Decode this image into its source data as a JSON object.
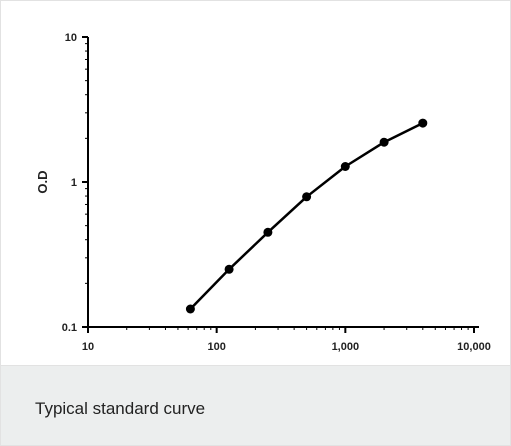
{
  "caption": "Typical standard curve",
  "chart_data": {
    "type": "line",
    "title": "",
    "xlabel": "",
    "ylabel": "O.D",
    "xscale": "log",
    "yscale": "log",
    "xlim": [
      10,
      10000
    ],
    "ylim": [
      0.1,
      10
    ],
    "x_ticks": [
      {
        "value": 10,
        "label": "10"
      },
      {
        "value": 100,
        "label": "100"
      },
      {
        "value": 1000,
        "label": "1,000"
      },
      {
        "value": 10000,
        "label": "10,000"
      }
    ],
    "y_ticks": [
      {
        "value": 0.1,
        "label": "0.1"
      },
      {
        "value": 1,
        "label": "1"
      },
      {
        "value": 10,
        "label": "10"
      }
    ],
    "grid": false,
    "line_color": "#000000",
    "marker": "circle",
    "series": [
      {
        "x": [
          62.5,
          125,
          250,
          500,
          1000,
          2000,
          4000
        ],
        "y": [
          0.133,
          0.25,
          0.45,
          0.79,
          1.28,
          1.88,
          2.55
        ]
      }
    ]
  }
}
